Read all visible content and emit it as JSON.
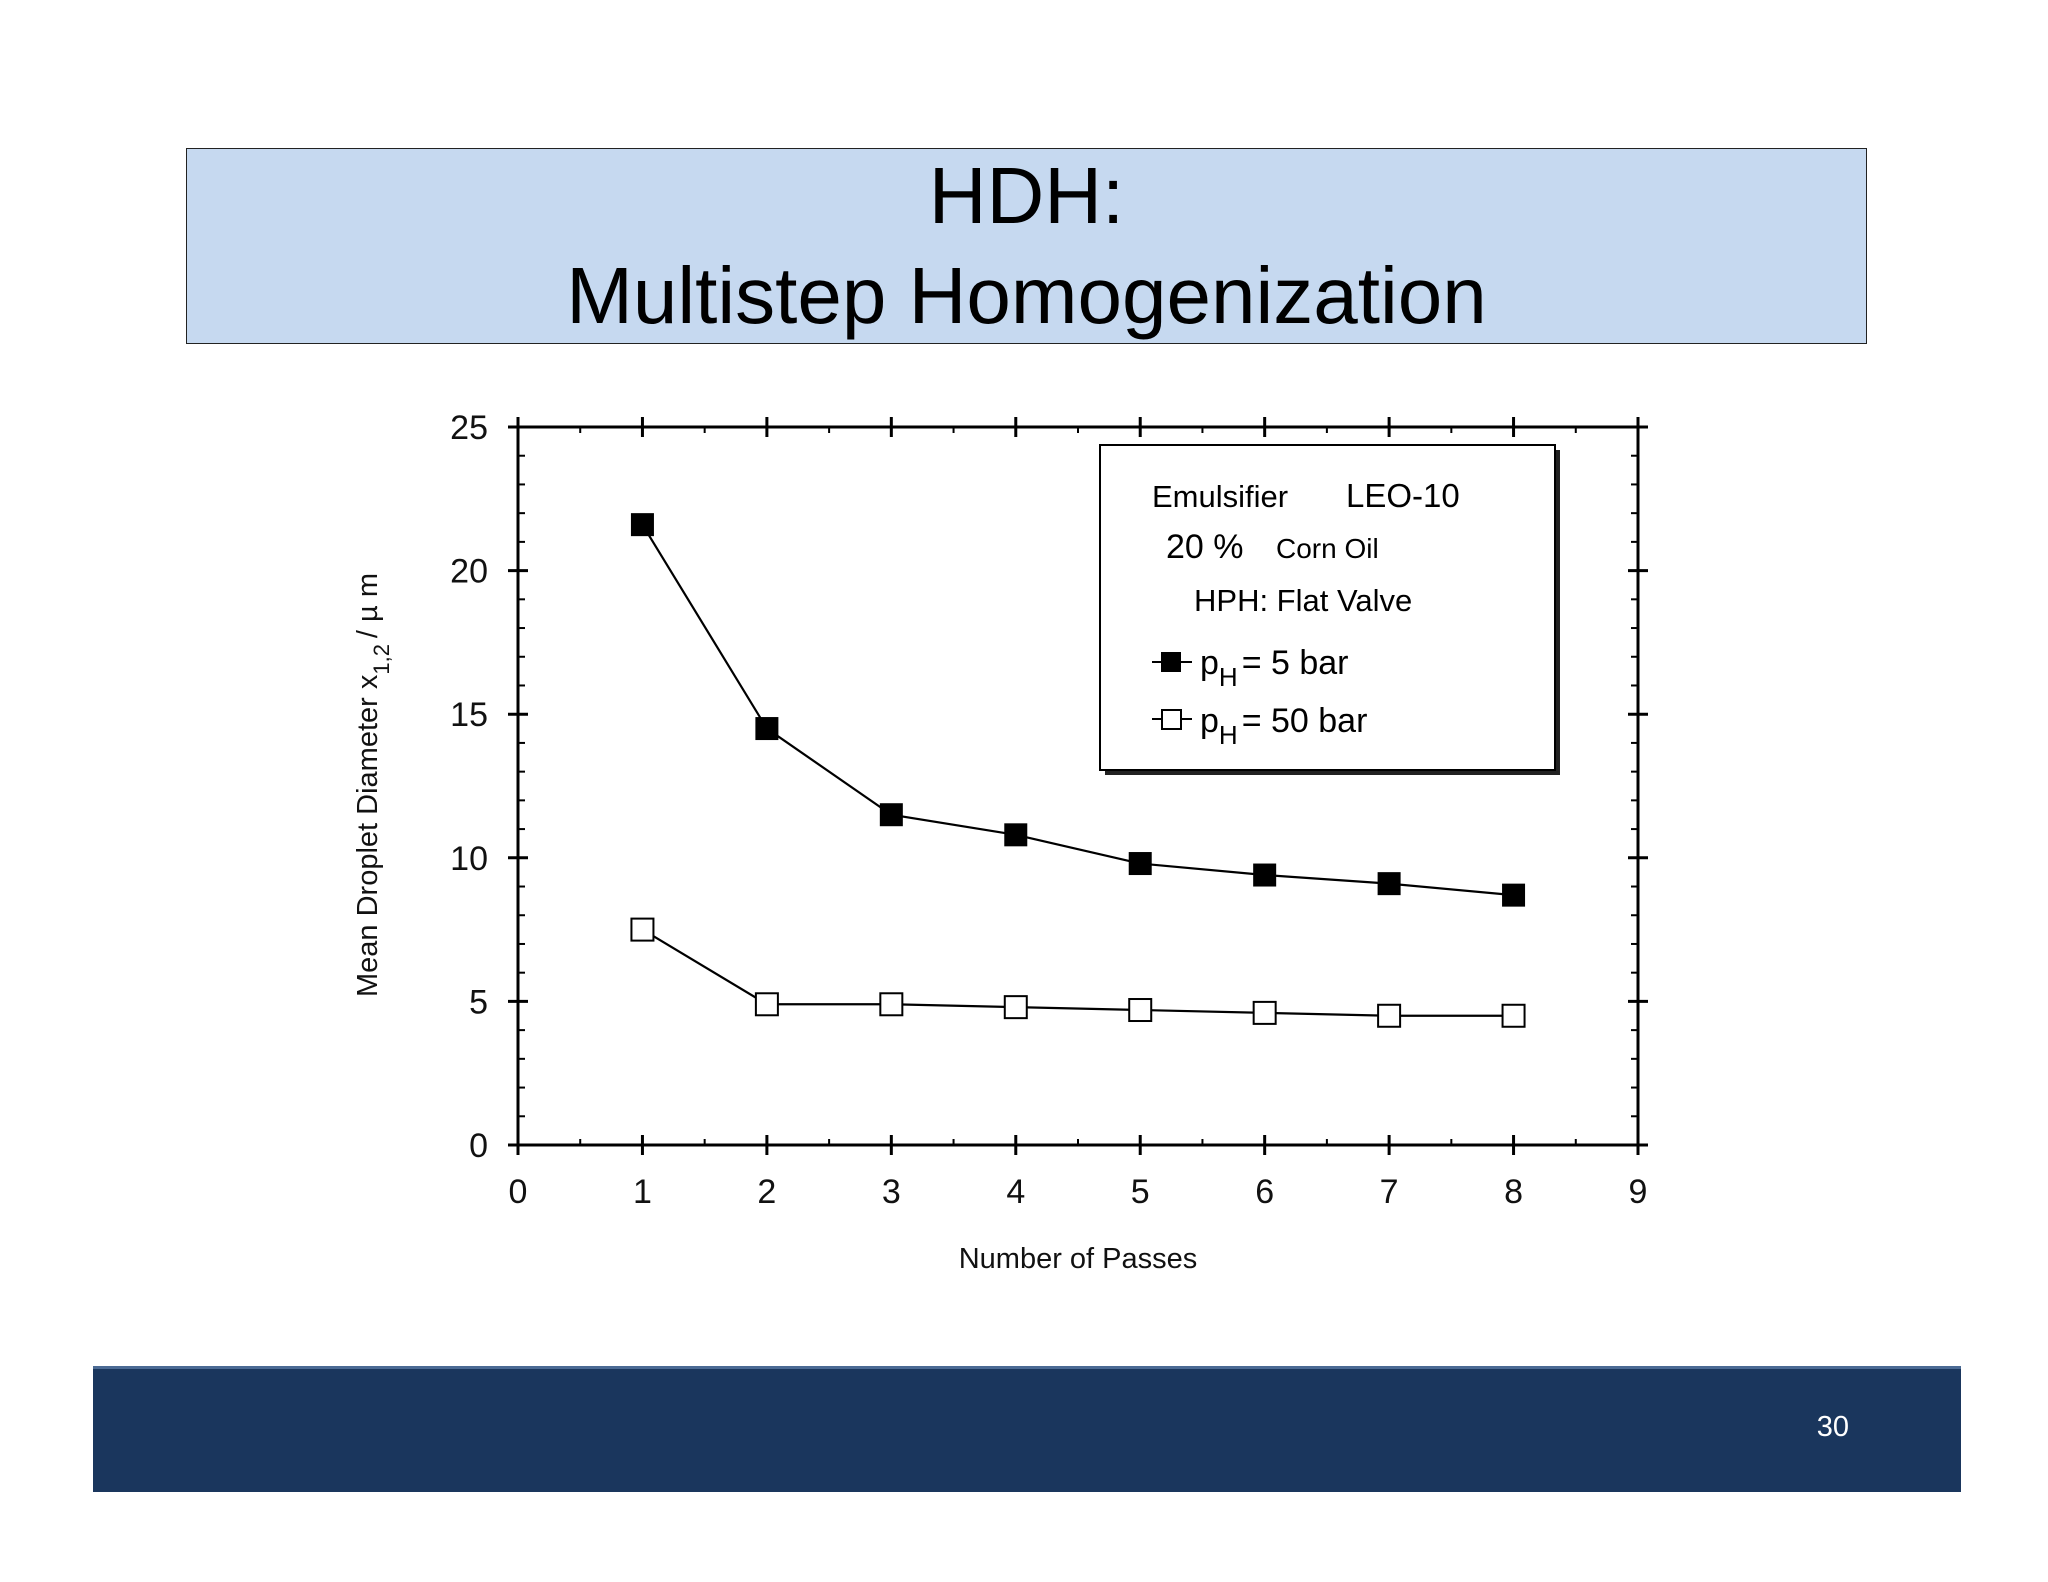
{
  "slide": {
    "title_line1": "HDH:",
    "title_line2": "Multistep Homogenization",
    "page_number": "30"
  },
  "colors": {
    "title_bg": "#c6d9f0",
    "footer_bg": "#1a365d"
  },
  "chart_data": {
    "type": "line",
    "xlabel": "Number of Passes",
    "ylabel": "Mean Droplet Diameter x 1,2 / µm",
    "ylabel_parts": {
      "main": "Mean Droplet Diameter  x",
      "sub": "1,2",
      "tail": "/ µ m"
    },
    "xlim": [
      0,
      9
    ],
    "ylim": [
      0,
      25
    ],
    "xticks": [
      "0",
      "1",
      "2",
      "3",
      "4",
      "5",
      "6",
      "7",
      "8",
      "9"
    ],
    "yticks": [
      "0",
      "5",
      "10",
      "15",
      "20",
      "25"
    ],
    "grid": false,
    "legend_position": "top-right",
    "annotations": {
      "line1_a": "Emulsifier",
      "line1_b": "LEO-10",
      "line2_a": "20 %",
      "line2_b": "Corn Oil",
      "line3": "HPH: Flat Valve"
    },
    "series": [
      {
        "label_p": "p",
        "label_sub": "H",
        "label_rest": "= 5 bar",
        "marker": "filled-square",
        "x": [
          1,
          2,
          3,
          4,
          5,
          6,
          7,
          8
        ],
        "y": [
          21.6,
          14.5,
          11.5,
          10.8,
          9.8,
          9.4,
          9.1,
          8.7
        ]
      },
      {
        "label_p": "p",
        "label_sub": "H",
        "label_rest": "= 50 bar",
        "marker": "open-square",
        "x": [
          1,
          2,
          3,
          4,
          5,
          6,
          7,
          8
        ],
        "y": [
          7.5,
          4.9,
          4.9,
          4.8,
          4.7,
          4.6,
          4.5,
          4.5
        ]
      }
    ]
  }
}
